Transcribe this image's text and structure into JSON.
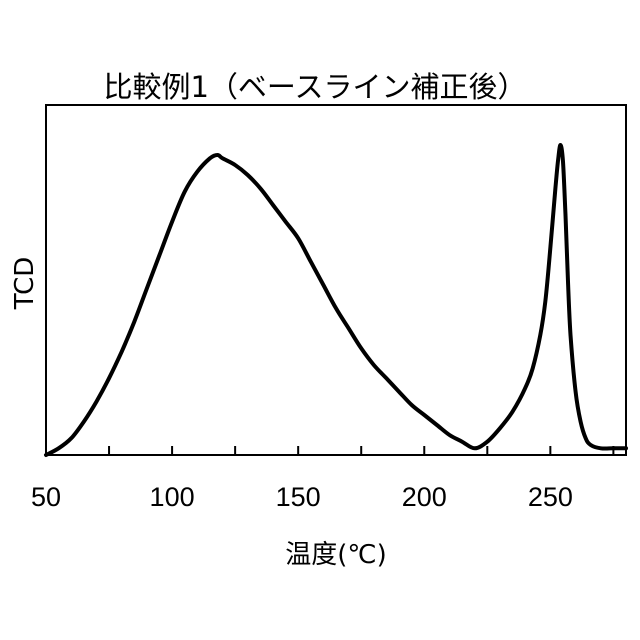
{
  "chart_data": {
    "type": "line",
    "title": "比較例1（ベースライン補正後）",
    "xlabel": "温度(℃)",
    "ylabel": "TCD",
    "xlim": [
      50,
      280
    ],
    "ylim": [
      0,
      1.05
    ],
    "x_ticks": [
      50,
      100,
      150,
      200,
      250
    ],
    "x_minor_ticks": [
      75,
      125,
      175,
      225,
      275
    ],
    "y_ticks_shown": false,
    "grid": false,
    "legend": "none",
    "line_color": "#000000",
    "series": [
      {
        "x": [
          50,
          55,
          60,
          65,
          70,
          75,
          80,
          85,
          90,
          95,
          100,
          105,
          110,
          115,
          118,
          120,
          125,
          130,
          135,
          140,
          145,
          150,
          155,
          160,
          165,
          170,
          175,
          180,
          185,
          190,
          195,
          200,
          205,
          210,
          215,
          220,
          225,
          230,
          235,
          240,
          243,
          246,
          248,
          250,
          252,
          253,
          254,
          255,
          256,
          257,
          258,
          260,
          262,
          264,
          266,
          270,
          275,
          280
        ],
        "y": [
          0.0,
          0.02,
          0.05,
          0.1,
          0.16,
          0.23,
          0.31,
          0.4,
          0.5,
          0.6,
          0.7,
          0.79,
          0.85,
          0.89,
          0.9,
          0.89,
          0.87,
          0.84,
          0.8,
          0.75,
          0.7,
          0.65,
          0.58,
          0.51,
          0.44,
          0.38,
          0.32,
          0.27,
          0.23,
          0.19,
          0.15,
          0.12,
          0.09,
          0.06,
          0.04,
          0.02,
          0.04,
          0.08,
          0.13,
          0.2,
          0.26,
          0.36,
          0.46,
          0.62,
          0.8,
          0.88,
          0.93,
          0.88,
          0.72,
          0.52,
          0.36,
          0.19,
          0.1,
          0.05,
          0.03,
          0.02,
          0.02,
          0.02
        ]
      }
    ]
  }
}
